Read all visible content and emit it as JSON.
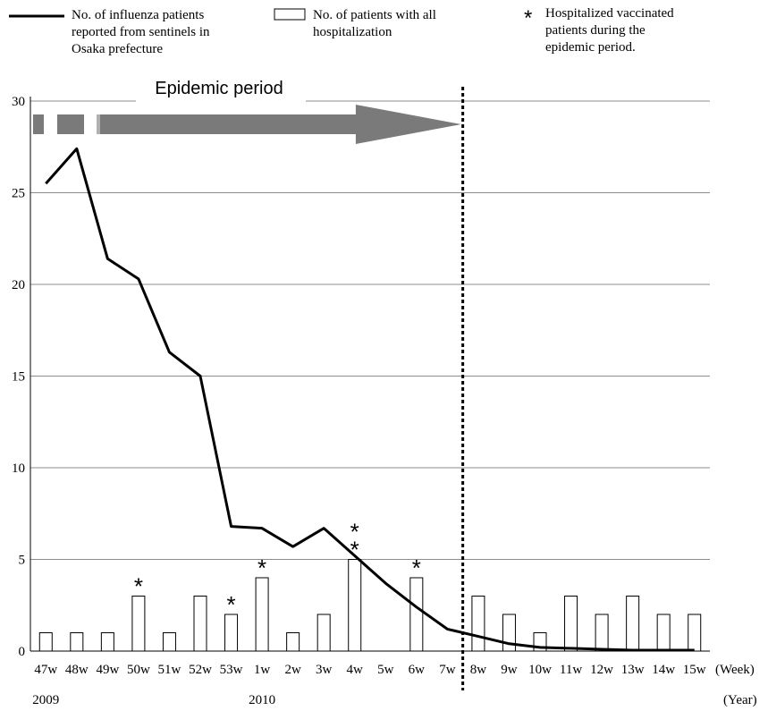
{
  "chart_data": {
    "type": "bar",
    "title": "",
    "xlabel": "(Week)",
    "ylabel": "",
    "year_label": "(Year)",
    "ylim": [
      0,
      30
    ],
    "yticks": [
      0,
      5,
      10,
      15,
      20,
      25,
      30
    ],
    "grid": true,
    "categories": [
      "47w",
      "48w",
      "49w",
      "50w",
      "51w",
      "52w",
      "53w",
      "1w",
      "2w",
      "3w",
      "4w",
      "5w",
      "6w",
      "7w",
      "8w",
      "9w",
      "10w",
      "11w",
      "12w",
      "13w",
      "14w",
      "15w"
    ],
    "years": [
      {
        "label": "2009",
        "at_category": "47w"
      },
      {
        "label": "2010",
        "at_category": "1w"
      }
    ],
    "series": [
      {
        "name": "No. of influenza patients reported from sentinels in Osaka prefecture",
        "kind": "line",
        "values": [
          25.5,
          27.4,
          21.4,
          20.3,
          16.3,
          15.0,
          6.8,
          6.7,
          5.7,
          6.7,
          5.2,
          3.7,
          2.4,
          1.2,
          0.8,
          0.4,
          0.2,
          0.15,
          0.1,
          0.05,
          0.05,
          0.05
        ]
      },
      {
        "name": "No. of patients with all hospitalization",
        "kind": "bar",
        "values": [
          1,
          1,
          1,
          3,
          1,
          3,
          2,
          4,
          1,
          2,
          5,
          0,
          4,
          0,
          3,
          2,
          1,
          3,
          2,
          3,
          2,
          2
        ]
      }
    ],
    "vaccinated_marker": {
      "name": "Hospitalized vaccinated patients during the epidemic period.",
      "symbol": "*",
      "counts": [
        {
          "category": "50w",
          "count": 1
        },
        {
          "category": "53w",
          "count": 1
        },
        {
          "category": "1w",
          "count": 1
        },
        {
          "category": "4w",
          "count": 2
        },
        {
          "category": "6w",
          "count": 1
        }
      ]
    },
    "epidemic_period": {
      "label": "Epidemic period",
      "start_category": "47w",
      "end_category": "7w"
    },
    "divider_after_category": "7w",
    "legend_placement": "top",
    "colors": {
      "line": "#000000",
      "bar_fill": "#ffffff",
      "bar_stroke": "#000000",
      "grid": "#8c8c8c",
      "arrow": "#7a7a7a",
      "arrow_light": "#b0b0b0"
    }
  }
}
